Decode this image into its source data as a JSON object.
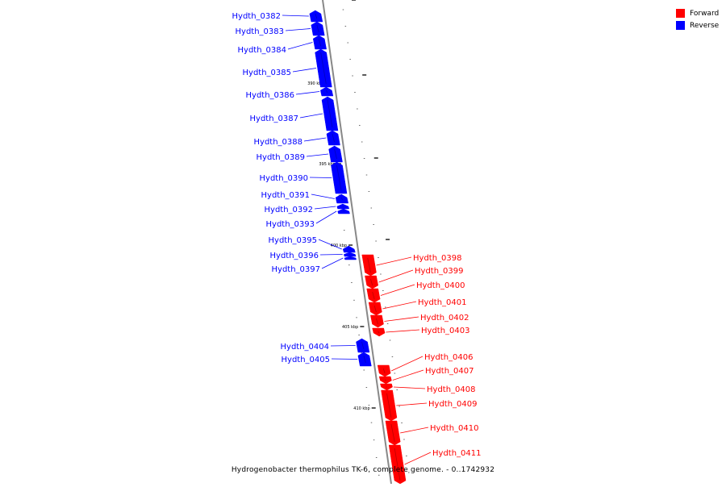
{
  "legend": {
    "forward_label": "Forward",
    "forward_color": "#ff0000",
    "reverse_label": "Reverse",
    "reverse_color": "#0000ff"
  },
  "caption": "Hydrogenobacter thermophilus TK-6, complete genome. - 0..1742932",
  "colors": {
    "axis": "#888888",
    "tick": "#000000"
  },
  "axis_ticks": [
    {
      "label": "390 kbp"
    },
    {
      "label": "395 kbp"
    },
    {
      "label": "400 kbp"
    },
    {
      "label": "405 kbp"
    },
    {
      "label": "410 kbp"
    }
  ],
  "genes": [
    {
      "name": "Hydth_0382",
      "strand": "reverse"
    },
    {
      "name": "Hydth_0383",
      "strand": "reverse"
    },
    {
      "name": "Hydth_0384",
      "strand": "reverse"
    },
    {
      "name": "Hydth_0385",
      "strand": "reverse"
    },
    {
      "name": "Hydth_0386",
      "strand": "reverse"
    },
    {
      "name": "Hydth_0387",
      "strand": "reverse"
    },
    {
      "name": "Hydth_0388",
      "strand": "reverse"
    },
    {
      "name": "Hydth_0389",
      "strand": "reverse"
    },
    {
      "name": "Hydth_0390",
      "strand": "reverse"
    },
    {
      "name": "Hydth_0391",
      "strand": "reverse"
    },
    {
      "name": "Hydth_0392",
      "strand": "reverse"
    },
    {
      "name": "Hydth_0393",
      "strand": "reverse"
    },
    {
      "name": "Hydth_0395",
      "strand": "reverse"
    },
    {
      "name": "Hydth_0396",
      "strand": "reverse"
    },
    {
      "name": "Hydth_0397",
      "strand": "reverse"
    },
    {
      "name": "Hydth_0398",
      "strand": "forward"
    },
    {
      "name": "Hydth_0399",
      "strand": "forward"
    },
    {
      "name": "Hydth_0400",
      "strand": "forward"
    },
    {
      "name": "Hydth_0401",
      "strand": "forward"
    },
    {
      "name": "Hydth_0402",
      "strand": "forward"
    },
    {
      "name": "Hydth_0403",
      "strand": "forward"
    },
    {
      "name": "Hydth_0404",
      "strand": "reverse"
    },
    {
      "name": "Hydth_0405",
      "strand": "reverse"
    },
    {
      "name": "Hydth_0406",
      "strand": "forward"
    },
    {
      "name": "Hydth_0407",
      "strand": "forward"
    },
    {
      "name": "Hydth_0408",
      "strand": "forward"
    },
    {
      "name": "Hydth_0409",
      "strand": "forward"
    },
    {
      "name": "Hydth_0410",
      "strand": "forward"
    },
    {
      "name": "Hydth_0411",
      "strand": "forward"
    }
  ]
}
